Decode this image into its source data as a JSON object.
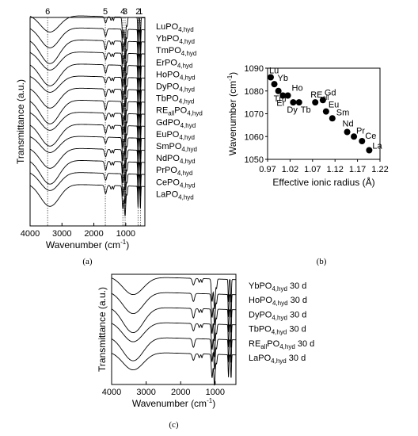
{
  "chart_data": [
    {
      "id": "a",
      "type": "line",
      "caption": "(a)",
      "xlabel": "Wavenumber (cm",
      "xlabel_sup": "-1",
      "xlabel_tail": ")",
      "ylabel": "Transmittance (a.u.)",
      "xlim": [
        4000,
        400
      ],
      "x_ticks": [
        "4000",
        "3000",
        "2000",
        "1000"
      ],
      "x_tick_values": [
        4000,
        3000,
        2000,
        1000
      ],
      "peak_markers": [
        {
          "label": "6",
          "x": 3450
        },
        {
          "label": "5",
          "x": 1640
        },
        {
          "label": "4",
          "x": 1090
        },
        {
          "label": "3",
          "x": 1020
        },
        {
          "label": "2",
          "x": 615
        },
        {
          "label": "1",
          "x": 540
        }
      ],
      "series": [
        {
          "base": "LuPO",
          "sub": "4,hyd",
          "pre": "",
          "sub_pre": ""
        },
        {
          "base": "YbPO",
          "sub": "4,hyd",
          "pre": "",
          "sub_pre": ""
        },
        {
          "base": "TmPO",
          "sub": "4,hyd",
          "pre": "",
          "sub_pre": ""
        },
        {
          "base": "ErPO",
          "sub": "4,hyd",
          "pre": "",
          "sub_pre": ""
        },
        {
          "base": "HoPO",
          "sub": "4,hyd",
          "pre": "",
          "sub_pre": ""
        },
        {
          "base": "DyPO",
          "sub": "4,hyd",
          "pre": "",
          "sub_pre": ""
        },
        {
          "base": "TbPO",
          "sub": "4,hyd",
          "pre": "",
          "sub_pre": ""
        },
        {
          "base": "PO",
          "sub": "4,hyd",
          "pre": "RE",
          "sub_pre": "all"
        },
        {
          "base": "GdPO",
          "sub": "4,hyd",
          "pre": "",
          "sub_pre": ""
        },
        {
          "base": "EuPO",
          "sub": "4,hyd",
          "pre": "",
          "sub_pre": ""
        },
        {
          "base": "SmPO",
          "sub": "4,hyd",
          "pre": "",
          "sub_pre": ""
        },
        {
          "base": "NdPO",
          "sub": "4,hyd",
          "pre": "",
          "sub_pre": ""
        },
        {
          "base": "PrPO",
          "sub": "4,hyd",
          "pre": "",
          "sub_pre": ""
        },
        {
          "base": "CePO",
          "sub": "4,hyd",
          "pre": "",
          "sub_pre": ""
        },
        {
          "base": "LaPO",
          "sub": "4,hyd",
          "pre": "",
          "sub_pre": ""
        }
      ]
    },
    {
      "id": "b",
      "type": "scatter",
      "caption": "(b)",
      "xlabel": "Effective ionic radius (Å)",
      "ylabel": "Wavenumber (cm",
      "ylabel_sup": "-1",
      "ylabel_tail": ")",
      "xlim": [
        0.97,
        1.22
      ],
      "ylim": [
        1050,
        1090
      ],
      "x_ticks": [
        "0.97",
        "1.02",
        "1.07",
        "1.12",
        "1.17",
        "1.22"
      ],
      "x_tick_values": [
        0.97,
        1.02,
        1.07,
        1.12,
        1.17,
        1.22
      ],
      "y_ticks": [
        "1050",
        "1060",
        "1070",
        "1080",
        "1090"
      ],
      "y_tick_values": [
        1050,
        1060,
        1070,
        1080,
        1090
      ],
      "points": [
        {
          "label": "Lu",
          "x": 0.977,
          "y": 1086
        },
        {
          "label": "Yb",
          "x": 0.985,
          "y": 1083
        },
        {
          "label": "Tm",
          "x": 0.994,
          "y": 1080
        },
        {
          "label": "Er",
          "x": 1.004,
          "y": 1078
        },
        {
          "label": "Ho",
          "x": 1.015,
          "y": 1078
        },
        {
          "label": "Dy",
          "x": 1.027,
          "y": 1075
        },
        {
          "label": "Tb",
          "x": 1.04,
          "y": 1075
        },
        {
          "label": "RE",
          "label_sub": "all",
          "x": 1.076,
          "y": 1075
        },
        {
          "label": "Gd",
          "x": 1.093,
          "y": 1076
        },
        {
          "label": "Eu",
          "x": 1.1,
          "y": 1071
        },
        {
          "label": "Sm",
          "x": 1.114,
          "y": 1068
        },
        {
          "label": "Nd",
          "x": 1.147,
          "y": 1062
        },
        {
          "label": "Pr",
          "x": 1.162,
          "y": 1060
        },
        {
          "label": "Ce",
          "x": 1.18,
          "y": 1058
        },
        {
          "label": "La",
          "x": 1.196,
          "y": 1054
        }
      ]
    },
    {
      "id": "c",
      "type": "line",
      "caption": "(c)",
      "xlabel": "Wavenumber (cm",
      "xlabel_sup": "-1",
      "xlabel_tail": ")",
      "ylabel": "Transmittance (a.u.)",
      "xlim": [
        4000,
        400
      ],
      "x_ticks": [
        "4000",
        "3000",
        "2000",
        "1000"
      ],
      "x_tick_values": [
        4000,
        3000,
        2000,
        1000
      ],
      "series": [
        {
          "base": "YbPO",
          "sub": "4,hyd",
          "pre": "",
          "sub_pre": "",
          "suffix": " 30 d"
        },
        {
          "base": "HoPO",
          "sub": "4,hyd",
          "pre": "",
          "sub_pre": "",
          "suffix": " 30 d"
        },
        {
          "base": "DyPO",
          "sub": "4,hyd",
          "pre": "",
          "sub_pre": "",
          "suffix": " 30 d"
        },
        {
          "base": "TbPO",
          "sub": "4,hyd",
          "pre": "",
          "sub_pre": "",
          "suffix": " 30 d"
        },
        {
          "base": "PO",
          "sub": "4,hyd",
          "pre": "RE",
          "sub_pre": "all",
          "suffix": " 30 d"
        },
        {
          "base": "LaPO",
          "sub": "4,hyd",
          "pre": "",
          "sub_pre": "",
          "suffix": " 30 d"
        }
      ]
    }
  ]
}
